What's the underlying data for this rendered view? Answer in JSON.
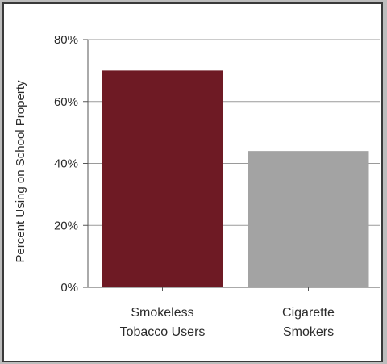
{
  "chart_data": {
    "type": "bar",
    "title": "",
    "xlabel": "",
    "ylabel": "Percent Using on School Property",
    "categories": [
      [
        "Smokeless",
        "Tobacco Users"
      ],
      [
        "Cigarette",
        "Smokers"
      ]
    ],
    "values": [
      70,
      44
    ],
    "bar_colors": [
      "#6e1a24",
      "#a3a3a3"
    ],
    "ylim": [
      0,
      80
    ],
    "yticks": [
      0,
      20,
      40,
      60,
      80
    ],
    "ytick_labels": [
      "0%",
      "20%",
      "40%",
      "60%",
      "80%"
    ],
    "grid": true,
    "grid_color": "#9a9a9a",
    "legend": "none"
  }
}
